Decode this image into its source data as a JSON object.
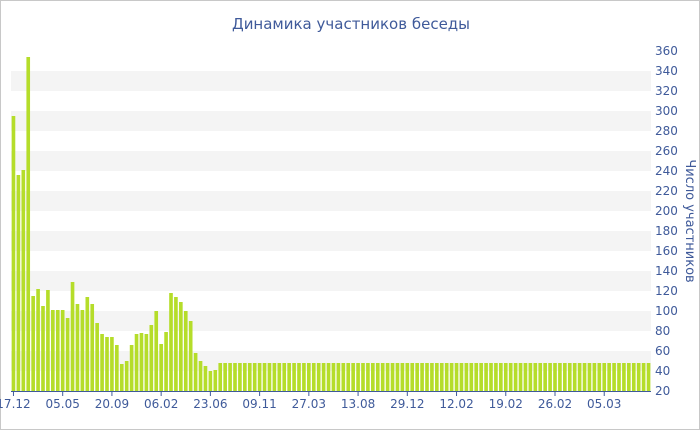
{
  "chart_data": {
    "type": "bar",
    "title": "Динамика участников беседы",
    "xlabel": "",
    "ylabel": "Число участников",
    "ylim": [
      20,
      360
    ],
    "y_ticks": [
      20,
      40,
      60,
      80,
      100,
      120,
      140,
      160,
      180,
      200,
      220,
      240,
      260,
      280,
      300,
      320,
      340,
      360
    ],
    "y_axis_side": "right",
    "grid": "alternating horizontal bands",
    "legend": "none",
    "bar_color": "#b5dd2a",
    "x_tick_labels": [
      {
        "label": "17.12",
        "bar_index": 0
      },
      {
        "label": "05.05",
        "bar_index": 10
      },
      {
        "label": "20.09",
        "bar_index": 20
      },
      {
        "label": "06.02",
        "bar_index": 30
      },
      {
        "label": "23.06",
        "bar_index": 40
      },
      {
        "label": "09.11",
        "bar_index": 50
      },
      {
        "label": "27.03",
        "bar_index": 60
      },
      {
        "label": "13.08",
        "bar_index": 70
      },
      {
        "label": "29.12",
        "bar_index": 80
      },
      {
        "label": "12.02",
        "bar_index": 90
      },
      {
        "label": "19.02",
        "bar_index": 100
      },
      {
        "label": "26.02",
        "bar_index": 110
      },
      {
        "label": "05.03",
        "bar_index": 120
      }
    ],
    "values": [
      295,
      236,
      241,
      354,
      115,
      122,
      105,
      121,
      101,
      101,
      101,
      93,
      129,
      107,
      101,
      114,
      107,
      88,
      77,
      74,
      74,
      66,
      47,
      50,
      66,
      77,
      78,
      77,
      86,
      100,
      67,
      79,
      118,
      114,
      109,
      100,
      90,
      58,
      50,
      45,
      40,
      41,
      48,
      48,
      48,
      48,
      48,
      48,
      48,
      48,
      48,
      48,
      48,
      48,
      48,
      48,
      48,
      48,
      48,
      48,
      48,
      48,
      48,
      48,
      48,
      48,
      48,
      48,
      48,
      48,
      48,
      48,
      48,
      48,
      48,
      48,
      48,
      48,
      48,
      48,
      48,
      48,
      48,
      48,
      48,
      48,
      48,
      48,
      48,
      48,
      48,
      48,
      48,
      48,
      48,
      48,
      48,
      48,
      48,
      48,
      48,
      48,
      48,
      48,
      48,
      48,
      48,
      48,
      48,
      48,
      48,
      48,
      48,
      48,
      48,
      48,
      48,
      48,
      48,
      48,
      48,
      48,
      48,
      48,
      48,
      48,
      48,
      48,
      48,
      48
    ]
  }
}
